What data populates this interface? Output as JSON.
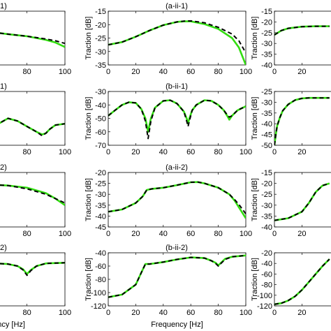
{
  "colors": {
    "green": "#33dd11",
    "black": "#000000"
  },
  "chart_data": [
    {
      "id": "a-i-1",
      "type": "line",
      "title": "1)",
      "title_partial": true,
      "ylabel": "",
      "xlabel": "",
      "xlim": [
        40,
        100
      ],
      "ylim": [
        -40,
        -10
      ],
      "xticks": [
        60,
        80,
        100
      ],
      "yticks": [],
      "series": [
        {
          "style": "green-solid",
          "x": [
            40,
            50,
            60,
            70,
            80,
            90,
            95,
            100
          ],
          "y": [
            -19.5,
            -20.5,
            -21.5,
            -22.8,
            -24,
            -26,
            -27.5,
            -30
          ]
        },
        {
          "style": "black-dashed",
          "x": [
            40,
            50,
            60,
            70,
            80,
            90,
            95,
            100
          ],
          "y": [
            -19.5,
            -20.5,
            -21.5,
            -22.8,
            -24,
            -25.5,
            -26.5,
            -28
          ]
        }
      ]
    },
    {
      "id": "a-ii-1",
      "type": "line",
      "title": "(a-ii-1)",
      "ylabel": "Traction [dB]",
      "xlabel": "",
      "xlim": [
        0,
        100
      ],
      "ylim": [
        -35,
        -15
      ],
      "xticks": [
        0,
        20,
        40,
        60,
        80,
        100
      ],
      "yticks": [
        -35,
        -30,
        -25,
        -20,
        -15
      ],
      "series": [
        {
          "style": "green-solid",
          "x": [
            0,
            10,
            20,
            30,
            40,
            50,
            55,
            60,
            70,
            80,
            90,
            95,
            100
          ],
          "y": [
            -27.5,
            -26.5,
            -24.5,
            -22.2,
            -20.2,
            -19,
            -18.8,
            -18.8,
            -19.8,
            -21.6,
            -25,
            -28.5,
            -35
          ]
        },
        {
          "style": "black-dashed",
          "x": [
            0,
            10,
            20,
            30,
            40,
            50,
            55,
            60,
            70,
            80,
            90,
            95,
            100
          ],
          "y": [
            -27.5,
            -26.5,
            -24.5,
            -22.2,
            -20.2,
            -19,
            -18.7,
            -18.6,
            -19.3,
            -21,
            -23.5,
            -26,
            -30.5
          ]
        }
      ]
    },
    {
      "id": "a-iii-1",
      "type": "line",
      "title": "",
      "ylabel": "Traction [dB]",
      "xlabel": "",
      "xlim": [
        0,
        100
      ],
      "ylim": [
        -40,
        -15
      ],
      "xticks": [
        0,
        20
      ],
      "yticks": [
        -40,
        -35,
        -30,
        -25,
        -20,
        -15
      ],
      "series": [
        {
          "style": "green-solid",
          "x": [
            0,
            5,
            10,
            20,
            30,
            40
          ],
          "y": [
            -26,
            -24,
            -23,
            -22.2,
            -22,
            -22
          ]
        },
        {
          "style": "black-dashed",
          "x": [
            0,
            5,
            10,
            20,
            30,
            40
          ],
          "y": [
            -26,
            -24,
            -23,
            -22.2,
            -22,
            -22
          ]
        }
      ]
    },
    {
      "id": "b-i-1",
      "type": "line",
      "title": "1)",
      "title_partial": true,
      "ylabel": "",
      "xlabel": "",
      "xlim": [
        40,
        100
      ],
      "ylim": [
        -70,
        -30
      ],
      "xticks": [
        60,
        80,
        100
      ],
      "yticks": [],
      "series": [
        {
          "style": "green-solid",
          "x": [
            40,
            45,
            50,
            55,
            58,
            60,
            62,
            65,
            70,
            75,
            80,
            85,
            88,
            90,
            92,
            95,
            100
          ],
          "y": [
            -50,
            -49,
            -51,
            -56,
            -60,
            -62,
            -59,
            -54,
            -50,
            -52,
            -56,
            -60,
            -62,
            -61,
            -58,
            -55,
            -54
          ]
        },
        {
          "style": "black-dashed",
          "x": [
            40,
            45,
            50,
            55,
            58,
            60,
            62,
            65,
            70,
            75,
            80,
            85,
            88,
            90,
            92,
            95,
            100
          ],
          "y": [
            -50,
            -49,
            -51,
            -57,
            -61,
            -63,
            -59,
            -54,
            -50,
            -52,
            -56,
            -60,
            -63,
            -61,
            -58,
            -55,
            -54
          ]
        }
      ]
    },
    {
      "id": "b-ii-1",
      "type": "line",
      "title": "(b-ii-1)",
      "ylabel": "Traction [dB]",
      "xlabel": "",
      "xlim": [
        0,
        100
      ],
      "ylim": [
        -70,
        -30
      ],
      "xticks": [
        0,
        20,
        40,
        60,
        80,
        100
      ],
      "yticks": [
        -70,
        -60,
        -50,
        -40,
        -30
      ],
      "series": [
        {
          "style": "green-solid",
          "x": [
            0,
            5,
            10,
            15,
            20,
            24,
            27,
            29,
            31,
            34,
            40,
            45,
            50,
            55,
            57,
            58,
            59,
            61,
            64,
            70,
            75,
            80,
            84,
            87,
            88,
            90,
            94,
            100
          ],
          "y": [
            -48,
            -44,
            -40,
            -38,
            -38.5,
            -43,
            -50,
            -60,
            -50,
            -42,
            -37,
            -36.5,
            -39,
            -45,
            -50,
            -54,
            -50,
            -44,
            -40,
            -36.5,
            -37,
            -40,
            -44,
            -49,
            -51,
            -48,
            -44,
            -41
          ]
        },
        {
          "style": "black-dashed",
          "x": [
            0,
            5,
            10,
            15,
            20,
            24,
            27,
            29,
            31,
            34,
            40,
            45,
            50,
            55,
            57,
            58,
            59,
            61,
            64,
            70,
            75,
            80,
            84,
            87,
            88,
            90,
            94,
            100
          ],
          "y": [
            -48,
            -44,
            -40,
            -38,
            -38.5,
            -43,
            -52,
            -65,
            -52,
            -42,
            -37,
            -36.5,
            -39,
            -45,
            -52,
            -56,
            -52,
            -44,
            -40,
            -36.5,
            -37,
            -40,
            -44,
            -48,
            -49,
            -48,
            -44,
            -41
          ]
        }
      ]
    },
    {
      "id": "b-iii-1",
      "type": "line",
      "title": "",
      "ylabel": "Traction [dB]",
      "xlabel": "",
      "xlim": [
        0,
        100
      ],
      "ylim": [
        -50,
        -25
      ],
      "xticks": [
        0,
        20
      ],
      "yticks": [
        -50,
        -45,
        -40,
        -35,
        -30,
        -25
      ],
      "series": [
        {
          "style": "green-solid",
          "x": [
            0,
            1,
            2,
            4,
            6,
            10,
            15,
            20,
            25,
            30,
            40
          ],
          "y": [
            -50,
            -45,
            -41,
            -37,
            -34,
            -31,
            -29,
            -28.2,
            -28,
            -28,
            -28
          ]
        },
        {
          "style": "black-dashed",
          "x": [
            0,
            1,
            2,
            4,
            6,
            10,
            15,
            20,
            25,
            30,
            40
          ],
          "y": [
            -50,
            -45,
            -41,
            -37,
            -34,
            -31,
            -29,
            -28.2,
            -28,
            -28,
            -28
          ]
        }
      ]
    },
    {
      "id": "a-i-2",
      "type": "line",
      "title": "2)",
      "title_partial": true,
      "ylabel": "",
      "xlabel": "",
      "xlim": [
        40,
        100
      ],
      "ylim": [
        -45,
        -20
      ],
      "xticks": [
        60,
        80,
        100
      ],
      "yticks": [],
      "series": [
        {
          "style": "green-solid",
          "x": [
            40,
            50,
            60,
            70,
            80,
            90,
            95,
            100
          ],
          "y": [
            -25,
            -25.2,
            -25.5,
            -26,
            -27,
            -29.5,
            -32,
            -35
          ]
        },
        {
          "style": "black-dashed",
          "x": [
            40,
            50,
            60,
            70,
            80,
            90,
            95,
            100
          ],
          "y": [
            -25,
            -25.2,
            -25.5,
            -26,
            -27.5,
            -30,
            -32,
            -34
          ]
        }
      ]
    },
    {
      "id": "a-ii-2",
      "type": "line",
      "title": "(a-ii-2)",
      "ylabel": "Traction [dB]",
      "xlabel": "",
      "xlim": [
        0,
        100
      ],
      "ylim": [
        -45,
        -20
      ],
      "xticks": [
        0,
        20,
        40,
        60,
        80,
        100
      ],
      "yticks": [
        -45,
        -40,
        -35,
        -30,
        -25,
        -20
      ],
      "series": [
        {
          "style": "green-solid",
          "x": [
            0,
            10,
            20,
            25,
            28,
            32,
            40,
            50,
            60,
            65,
            70,
            80,
            88,
            92,
            96,
            100
          ],
          "y": [
            -38,
            -37,
            -34,
            -31,
            -28,
            -27.5,
            -27,
            -25.8,
            -24.5,
            -24.4,
            -25,
            -27,
            -30,
            -33,
            -37,
            -41
          ]
        },
        {
          "style": "black-dashed",
          "x": [
            0,
            10,
            20,
            25,
            28,
            32,
            40,
            50,
            60,
            65,
            70,
            80,
            88,
            92,
            96,
            100
          ],
          "y": [
            -38,
            -37,
            -34,
            -31,
            -28,
            -27.5,
            -27,
            -25.8,
            -24.5,
            -24.4,
            -25,
            -27,
            -30,
            -32.5,
            -35.5,
            -39
          ]
        }
      ]
    },
    {
      "id": "a-iii-2",
      "type": "line",
      "title": "",
      "ylabel": "Traction [dB]",
      "xlabel": "",
      "xlim": [
        0,
        100
      ],
      "ylim": [
        -40,
        -15
      ],
      "xticks": [
        0,
        20
      ],
      "yticks": [
        -40,
        -35,
        -30,
        -25,
        -20,
        -15
      ],
      "series": [
        {
          "style": "green-solid",
          "x": [
            0,
            10,
            20,
            25,
            30,
            35,
            40
          ],
          "y": [
            -37,
            -36,
            -33,
            -29,
            -24,
            -21,
            -20
          ]
        },
        {
          "style": "black-dashed",
          "x": [
            0,
            10,
            20,
            25,
            30,
            35,
            40
          ],
          "y": [
            -37,
            -36,
            -33,
            -29,
            -24,
            -21,
            -20
          ]
        }
      ]
    },
    {
      "id": "b-i-2",
      "type": "line",
      "title": "2)",
      "title_partial": true,
      "ylabel": "",
      "xlabel": "Frequency [Hz]",
      "xlabel_partial": true,
      "xlim": [
        40,
        100
      ],
      "ylim": [
        -120,
        -40
      ],
      "xticks": [
        60,
        80,
        100
      ],
      "yticks": [],
      "series": [
        {
          "style": "green-solid",
          "x": [
            40,
            50,
            60,
            70,
            75,
            78,
            80,
            82,
            85,
            90,
            100
          ],
          "y": [
            -55,
            -55,
            -55.5,
            -57,
            -60,
            -65,
            -72,
            -66,
            -60,
            -56,
            -55
          ]
        },
        {
          "style": "black-dashed",
          "x": [
            40,
            50,
            60,
            70,
            75,
            78,
            80,
            82,
            85,
            90,
            100
          ],
          "y": [
            -55,
            -55,
            -55.5,
            -57,
            -60,
            -66,
            -74,
            -67,
            -60,
            -56,
            -55
          ]
        }
      ]
    },
    {
      "id": "b-ii-2",
      "type": "line",
      "title": "(b-ii-2)",
      "ylabel": "Traction [dB]",
      "xlabel": "Frequency [Hz]",
      "xlim": [
        0,
        100
      ],
      "ylim": [
        -120,
        -40
      ],
      "xticks": [
        0,
        20,
        40,
        60,
        80,
        100
      ],
      "yticks": [
        -120,
        -100,
        -80,
        -60,
        -40
      ],
      "series": [
        {
          "style": "green-solid",
          "x": [
            0,
            10,
            20,
            24,
            27,
            30,
            40,
            50,
            60,
            70,
            75,
            78,
            80,
            82,
            85,
            90,
            100
          ],
          "y": [
            -107,
            -103,
            -88,
            -70,
            -57,
            -57,
            -54,
            -50,
            -47,
            -48,
            -52,
            -55,
            -59,
            -55,
            -49,
            -46,
            -44
          ]
        },
        {
          "style": "black-dashed",
          "x": [
            0,
            10,
            20,
            24,
            27,
            30,
            40,
            50,
            60,
            70,
            75,
            78,
            80,
            82,
            85,
            90,
            100
          ],
          "y": [
            -107,
            -103,
            -88,
            -70,
            -57,
            -57,
            -54,
            -50,
            -47,
            -48,
            -52,
            -56,
            -60,
            -56,
            -50,
            -46,
            -44
          ]
        }
      ]
    },
    {
      "id": "b-iii-2",
      "type": "line",
      "title": "",
      "ylabel": "Traction [dB]",
      "xlabel": "",
      "xlim": [
        0,
        100
      ],
      "ylim": [
        -120,
        -20
      ],
      "xticks": [
        0,
        20
      ],
      "yticks": [
        -120,
        -100,
        -80,
        -60,
        -40,
        -20
      ],
      "series": [
        {
          "style": "green-solid",
          "x": [
            0,
            5,
            10,
            15,
            20,
            25,
            30,
            35,
            40
          ],
          "y": [
            -117,
            -115,
            -110,
            -102,
            -90,
            -75,
            -60,
            -45,
            -32
          ]
        },
        {
          "style": "black-dashed",
          "x": [
            0,
            5,
            10,
            15,
            20,
            25,
            30,
            35,
            40
          ],
          "y": [
            -117,
            -115,
            -110,
            -102,
            -90,
            -75,
            -60,
            -45,
            -32
          ]
        }
      ]
    }
  ]
}
